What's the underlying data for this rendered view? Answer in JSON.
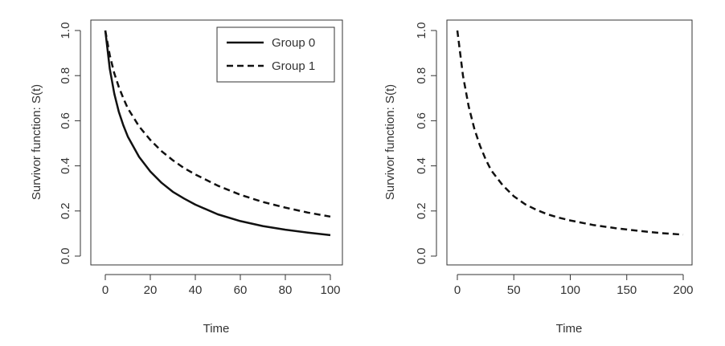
{
  "chart_data": [
    {
      "type": "line",
      "xlabel": "Time",
      "ylabel": "Survivor function: S(t)",
      "xlim": [
        0,
        100
      ],
      "ylim": [
        0,
        1
      ],
      "x_ticks": [
        "0",
        "20",
        "40",
        "60",
        "80",
        "100"
      ],
      "y_ticks": [
        "0.0",
        "0.2",
        "0.4",
        "0.6",
        "0.8",
        "1.0"
      ],
      "legend_position": "top-right",
      "grid": false,
      "series": [
        {
          "name": "Group 0",
          "style": "solid",
          "x": [
            0,
            2,
            4,
            6,
            8,
            10,
            15,
            20,
            25,
            30,
            35,
            40,
            50,
            60,
            70,
            80,
            90,
            100
          ],
          "y": [
            1.0,
            0.83,
            0.72,
            0.64,
            0.58,
            0.53,
            0.44,
            0.375,
            0.325,
            0.285,
            0.255,
            0.228,
            0.185,
            0.155,
            0.133,
            0.117,
            0.104,
            0.093
          ]
        },
        {
          "name": "Group 1",
          "style": "dashed",
          "x": [
            0,
            2,
            4,
            6,
            8,
            10,
            15,
            20,
            25,
            30,
            35,
            40,
            50,
            60,
            70,
            80,
            90,
            100
          ],
          "y": [
            1.0,
            0.89,
            0.81,
            0.75,
            0.7,
            0.655,
            0.575,
            0.515,
            0.465,
            0.425,
            0.39,
            0.362,
            0.312,
            0.272,
            0.24,
            0.215,
            0.193,
            0.175
          ]
        }
      ]
    },
    {
      "type": "line",
      "xlabel": "Time",
      "ylabel": "Survivor function: S(t)",
      "xlim": [
        0,
        200
      ],
      "ylim": [
        0,
        1
      ],
      "x_ticks": [
        "0",
        "50",
        "100",
        "150",
        "200"
      ],
      "y_ticks": [
        "0.0",
        "0.2",
        "0.4",
        "0.6",
        "0.8",
        "1.0"
      ],
      "grid": false,
      "series": [
        {
          "style": "dashed",
          "x": [
            0,
            5,
            10,
            15,
            20,
            25,
            30,
            40,
            50,
            60,
            70,
            80,
            90,
            100,
            120,
            140,
            160,
            180,
            200
          ],
          "y": [
            1.0,
            0.8,
            0.665,
            0.565,
            0.49,
            0.43,
            0.38,
            0.315,
            0.265,
            0.23,
            0.205,
            0.185,
            0.17,
            0.158,
            0.138,
            0.124,
            0.112,
            0.102,
            0.095
          ]
        }
      ]
    }
  ]
}
